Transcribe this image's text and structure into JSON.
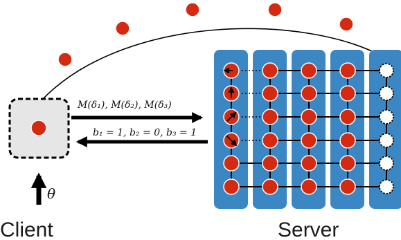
{
  "labels": {
    "client": "Client",
    "server": "Server",
    "theta": "θ",
    "query_arrow": "M(δ₁), M(δ₂), M(δ₃)",
    "answer_arrow": "b₁ = 1, b₂ = 0, b₃ = 1"
  },
  "colors": {
    "qubit": "#d42a12",
    "qubit_outline": "#ffffff",
    "column_fill": "#3b87c3",
    "client_box": "#e6e6e6",
    "arrow": "#000000",
    "empty_qubit": "#ffffff"
  },
  "diagram": {
    "server_grid": {
      "columns": 5,
      "rows": 6,
      "final_column": "unmeasured"
    },
    "measured_qubits_in_column_1": 4,
    "flying_qubits": 5,
    "nodes": [
      {
        "id": "client",
        "label_ref": "labels.client"
      },
      {
        "id": "server",
        "label_ref": "labels.server"
      }
    ],
    "edges": [
      {
        "from": "client",
        "to": "server",
        "label_ref": "labels.query_arrow"
      },
      {
        "from": "server",
        "to": "client",
        "label_ref": "labels.answer_arrow"
      },
      {
        "from": "client",
        "to": "server",
        "style": "curved-thin",
        "carries": "qubits"
      }
    ]
  }
}
